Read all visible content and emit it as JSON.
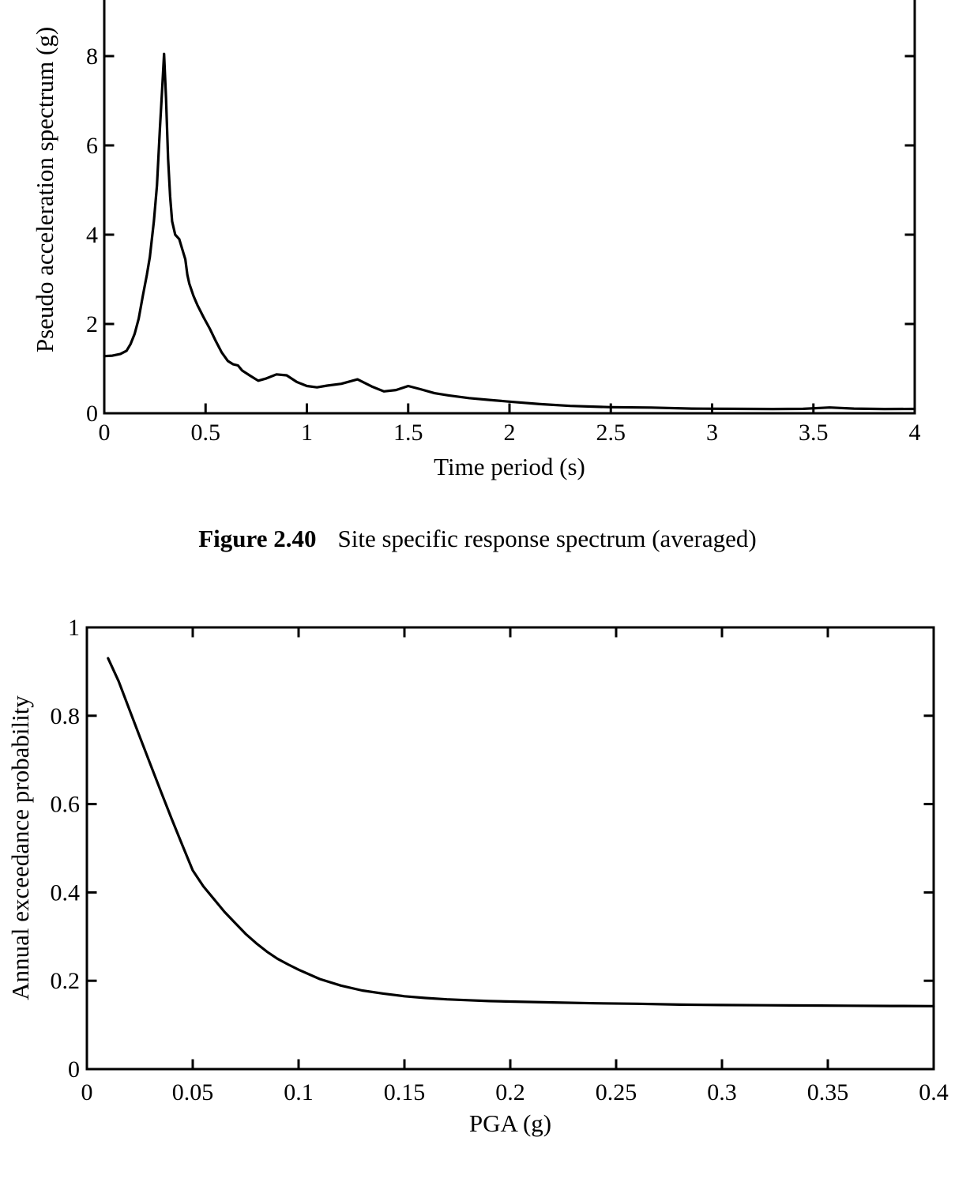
{
  "page": {
    "background": "#ffffff",
    "ink": "#000000"
  },
  "caption": {
    "label": "Figure 2.40",
    "text": "Site specific response spectrum (averaged)"
  },
  "chart_data": [
    {
      "id": "spectrum",
      "type": "line",
      "title": "",
      "xlabel": "Time period (s)",
      "ylabel": "Pseudo acceleration spectrum (g)",
      "xlim": [
        0,
        4
      ],
      "ylim": [
        0,
        9.26
      ],
      "frame_note": "top spine cropped off by screenshot edge; left, right and bottom spines with inward ticks",
      "grid": false,
      "legend": false,
      "line_color": "#000000",
      "xticks": {
        "values": [
          0,
          0.5,
          1,
          1.5,
          2,
          2.5,
          3,
          3.5,
          4
        ],
        "labels": [
          "0",
          "0.5",
          "1",
          "1.5",
          "2",
          "2.5",
          "3",
          "3.5",
          "4"
        ]
      },
      "yticks": {
        "values": [
          0,
          2,
          4,
          6,
          8
        ],
        "labels": [
          "0",
          "2",
          "4",
          "6",
          "8"
        ]
      },
      "series": [
        {
          "name": "site specific response spectrum (averaged)",
          "x": [
            0,
            0.04,
            0.08,
            0.11,
            0.13,
            0.15,
            0.17,
            0.19,
            0.21,
            0.225,
            0.245,
            0.26,
            0.275,
            0.285,
            0.295,
            0.305,
            0.315,
            0.325,
            0.335,
            0.35,
            0.37,
            0.39,
            0.4,
            0.41,
            0.42,
            0.44,
            0.46,
            0.49,
            0.52,
            0.55,
            0.58,
            0.61,
            0.635,
            0.66,
            0.68,
            0.72,
            0.76,
            0.8,
            0.85,
            0.9,
            0.95,
            1.0,
            1.05,
            1.1,
            1.17,
            1.25,
            1.32,
            1.38,
            1.44,
            1.5,
            1.56,
            1.63,
            1.7,
            1.8,
            1.9,
            2.0,
            2.15,
            2.3,
            2.5,
            2.7,
            2.9,
            3.1,
            3.3,
            3.45,
            3.58,
            3.7,
            3.85,
            4.0
          ],
          "y": [
            1.28,
            1.29,
            1.33,
            1.4,
            1.55,
            1.78,
            2.12,
            2.62,
            3.1,
            3.5,
            4.3,
            5.1,
            6.4,
            7.2,
            8.05,
            7.05,
            5.7,
            4.85,
            4.3,
            4.0,
            3.9,
            3.6,
            3.45,
            3.1,
            2.9,
            2.63,
            2.42,
            2.15,
            1.9,
            1.62,
            1.36,
            1.17,
            1.1,
            1.07,
            0.96,
            0.84,
            0.73,
            0.78,
            0.87,
            0.85,
            0.7,
            0.61,
            0.58,
            0.62,
            0.66,
            0.76,
            0.6,
            0.49,
            0.52,
            0.61,
            0.54,
            0.45,
            0.4,
            0.34,
            0.3,
            0.26,
            0.205,
            0.165,
            0.136,
            0.128,
            0.105,
            0.1,
            0.095,
            0.1,
            0.13,
            0.105,
            0.095,
            0.097
          ]
        }
      ]
    },
    {
      "id": "hazard",
      "type": "line",
      "title": "",
      "xlabel": "PGA (g)",
      "ylabel": "Annual exceedance probability",
      "xlim": [
        0,
        0.4
      ],
      "ylim": [
        0,
        1
      ],
      "frame_note": "full box frame with inward ticks on all four sides",
      "grid": false,
      "legend": false,
      "line_color": "#000000",
      "xticks": {
        "values": [
          0,
          0.05,
          0.1,
          0.15,
          0.2,
          0.25,
          0.3,
          0.35,
          0.4
        ],
        "labels": [
          "0",
          "0.05",
          "0.1",
          "0.15",
          "0.2",
          "0.25",
          "0.3",
          "0.35",
          "0.4"
        ]
      },
      "yticks": {
        "values": [
          0,
          0.2,
          0.4,
          0.6,
          0.8,
          1
        ],
        "labels": [
          "0",
          "0.2",
          "0.4",
          "0.6",
          "0.8",
          "1"
        ]
      },
      "series": [
        {
          "name": "annual exceedance probability vs PGA",
          "x": [
            0.01,
            0.015,
            0.02,
            0.025,
            0.03,
            0.035,
            0.04,
            0.045,
            0.05,
            0.055,
            0.06,
            0.065,
            0.07,
            0.075,
            0.08,
            0.085,
            0.09,
            0.095,
            0.1,
            0.11,
            0.12,
            0.13,
            0.14,
            0.15,
            0.16,
            0.17,
            0.18,
            0.19,
            0.2,
            0.22,
            0.24,
            0.26,
            0.28,
            0.3,
            0.32,
            0.34,
            0.36,
            0.38,
            0.4
          ],
          "y": [
            0.93,
            0.878,
            0.815,
            0.752,
            0.69,
            0.628,
            0.567,
            0.508,
            0.45,
            0.414,
            0.385,
            0.356,
            0.331,
            0.306,
            0.285,
            0.266,
            0.25,
            0.237,
            0.225,
            0.204,
            0.189,
            0.178,
            0.171,
            0.165,
            0.161,
            0.158,
            0.156,
            0.154,
            0.153,
            0.151,
            0.149,
            0.148,
            0.146,
            0.145,
            0.1445,
            0.144,
            0.1435,
            0.143,
            0.1425
          ]
        }
      ]
    }
  ]
}
